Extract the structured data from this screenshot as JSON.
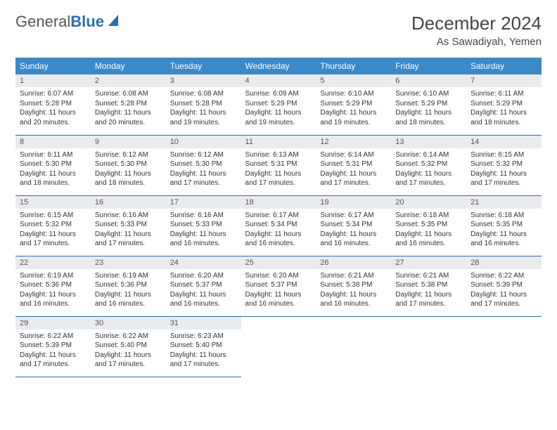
{
  "logo": {
    "text_gray": "General",
    "text_blue": "Blue"
  },
  "title": "December 2024",
  "location": "As Sawadiyah, Yemen",
  "weekday_headers": [
    "Sunday",
    "Monday",
    "Tuesday",
    "Wednesday",
    "Thursday",
    "Friday",
    "Saturday"
  ],
  "colors": {
    "header_bg": "#3b89c9",
    "header_text": "#ffffff",
    "day_head_bg": "#e9ecef",
    "row_border": "#2a6db0",
    "logo_blue": "#2a6db0",
    "body_text": "#333333",
    "page_bg": "#ffffff"
  },
  "days": [
    {
      "n": "1",
      "sunrise": "Sunrise: 6:07 AM",
      "sunset": "Sunset: 5:28 PM",
      "daylight": "Daylight: 11 hours and 20 minutes."
    },
    {
      "n": "2",
      "sunrise": "Sunrise: 6:08 AM",
      "sunset": "Sunset: 5:28 PM",
      "daylight": "Daylight: 11 hours and 20 minutes."
    },
    {
      "n": "3",
      "sunrise": "Sunrise: 6:08 AM",
      "sunset": "Sunset: 5:28 PM",
      "daylight": "Daylight: 11 hours and 19 minutes."
    },
    {
      "n": "4",
      "sunrise": "Sunrise: 6:09 AM",
      "sunset": "Sunset: 5:29 PM",
      "daylight": "Daylight: 11 hours and 19 minutes."
    },
    {
      "n": "5",
      "sunrise": "Sunrise: 6:10 AM",
      "sunset": "Sunset: 5:29 PM",
      "daylight": "Daylight: 11 hours and 19 minutes."
    },
    {
      "n": "6",
      "sunrise": "Sunrise: 6:10 AM",
      "sunset": "Sunset: 5:29 PM",
      "daylight": "Daylight: 11 hours and 18 minutes."
    },
    {
      "n": "7",
      "sunrise": "Sunrise: 6:11 AM",
      "sunset": "Sunset: 5:29 PM",
      "daylight": "Daylight: 11 hours and 18 minutes."
    },
    {
      "n": "8",
      "sunrise": "Sunrise: 6:11 AM",
      "sunset": "Sunset: 5:30 PM",
      "daylight": "Daylight: 11 hours and 18 minutes."
    },
    {
      "n": "9",
      "sunrise": "Sunrise: 6:12 AM",
      "sunset": "Sunset: 5:30 PM",
      "daylight": "Daylight: 11 hours and 18 minutes."
    },
    {
      "n": "10",
      "sunrise": "Sunrise: 6:12 AM",
      "sunset": "Sunset: 5:30 PM",
      "daylight": "Daylight: 11 hours and 17 minutes."
    },
    {
      "n": "11",
      "sunrise": "Sunrise: 6:13 AM",
      "sunset": "Sunset: 5:31 PM",
      "daylight": "Daylight: 11 hours and 17 minutes."
    },
    {
      "n": "12",
      "sunrise": "Sunrise: 6:14 AM",
      "sunset": "Sunset: 5:31 PM",
      "daylight": "Daylight: 11 hours and 17 minutes."
    },
    {
      "n": "13",
      "sunrise": "Sunrise: 6:14 AM",
      "sunset": "Sunset: 5:32 PM",
      "daylight": "Daylight: 11 hours and 17 minutes."
    },
    {
      "n": "14",
      "sunrise": "Sunrise: 6:15 AM",
      "sunset": "Sunset: 5:32 PM",
      "daylight": "Daylight: 11 hours and 17 minutes."
    },
    {
      "n": "15",
      "sunrise": "Sunrise: 6:15 AM",
      "sunset": "Sunset: 5:32 PM",
      "daylight": "Daylight: 11 hours and 17 minutes."
    },
    {
      "n": "16",
      "sunrise": "Sunrise: 6:16 AM",
      "sunset": "Sunset: 5:33 PM",
      "daylight": "Daylight: 11 hours and 17 minutes."
    },
    {
      "n": "17",
      "sunrise": "Sunrise: 6:16 AM",
      "sunset": "Sunset: 5:33 PM",
      "daylight": "Daylight: 11 hours and 16 minutes."
    },
    {
      "n": "18",
      "sunrise": "Sunrise: 6:17 AM",
      "sunset": "Sunset: 5:34 PM",
      "daylight": "Daylight: 11 hours and 16 minutes."
    },
    {
      "n": "19",
      "sunrise": "Sunrise: 6:17 AM",
      "sunset": "Sunset: 5:34 PM",
      "daylight": "Daylight: 11 hours and 16 minutes."
    },
    {
      "n": "20",
      "sunrise": "Sunrise: 6:18 AM",
      "sunset": "Sunset: 5:35 PM",
      "daylight": "Daylight: 11 hours and 16 minutes."
    },
    {
      "n": "21",
      "sunrise": "Sunrise: 6:18 AM",
      "sunset": "Sunset: 5:35 PM",
      "daylight": "Daylight: 11 hours and 16 minutes."
    },
    {
      "n": "22",
      "sunrise": "Sunrise: 6:19 AM",
      "sunset": "Sunset: 5:36 PM",
      "daylight": "Daylight: 11 hours and 16 minutes."
    },
    {
      "n": "23",
      "sunrise": "Sunrise: 6:19 AM",
      "sunset": "Sunset: 5:36 PM",
      "daylight": "Daylight: 11 hours and 16 minutes."
    },
    {
      "n": "24",
      "sunrise": "Sunrise: 6:20 AM",
      "sunset": "Sunset: 5:37 PM",
      "daylight": "Daylight: 11 hours and 16 minutes."
    },
    {
      "n": "25",
      "sunrise": "Sunrise: 6:20 AM",
      "sunset": "Sunset: 5:37 PM",
      "daylight": "Daylight: 11 hours and 16 minutes."
    },
    {
      "n": "26",
      "sunrise": "Sunrise: 6:21 AM",
      "sunset": "Sunset: 5:38 PM",
      "daylight": "Daylight: 11 hours and 16 minutes."
    },
    {
      "n": "27",
      "sunrise": "Sunrise: 6:21 AM",
      "sunset": "Sunset: 5:38 PM",
      "daylight": "Daylight: 11 hours and 17 minutes."
    },
    {
      "n": "28",
      "sunrise": "Sunrise: 6:22 AM",
      "sunset": "Sunset: 5:39 PM",
      "daylight": "Daylight: 11 hours and 17 minutes."
    },
    {
      "n": "29",
      "sunrise": "Sunrise: 6:22 AM",
      "sunset": "Sunset: 5:39 PM",
      "daylight": "Daylight: 11 hours and 17 minutes."
    },
    {
      "n": "30",
      "sunrise": "Sunrise: 6:22 AM",
      "sunset": "Sunset: 5:40 PM",
      "daylight": "Daylight: 11 hours and 17 minutes."
    },
    {
      "n": "31",
      "sunrise": "Sunrise: 6:23 AM",
      "sunset": "Sunset: 5:40 PM",
      "daylight": "Daylight: 11 hours and 17 minutes."
    }
  ]
}
